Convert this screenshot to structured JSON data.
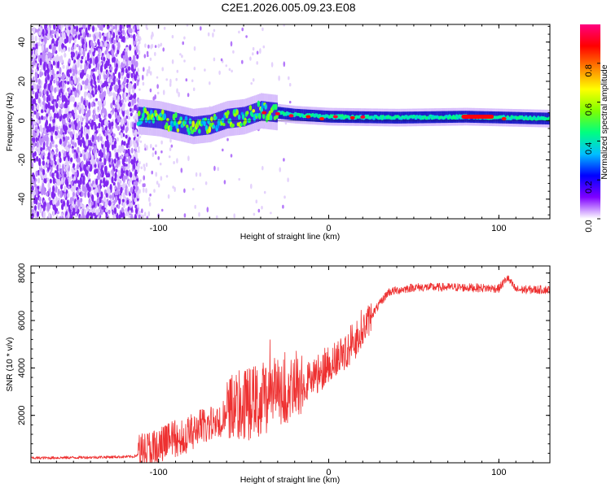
{
  "title": "C2E1.2026.005.09.23.E08",
  "chart_data": [
    {
      "type": "heatmap",
      "name": "spectrogram",
      "xlabel": "Height of straight line (km)",
      "ylabel": "Frequency (Hz)",
      "xlim": [
        -175,
        130
      ],
      "ylim": [
        -50,
        49
      ],
      "xticks": [
        -100,
        0,
        100
      ],
      "yticks": [
        -40,
        -20,
        0,
        20,
        40
      ],
      "colorbar": {
        "label": "Normalized spectral amplitude",
        "range": [
          0,
          1
        ],
        "ticks": [
          "0.0",
          "0.2",
          "0.4",
          "0.6",
          "0.8"
        ],
        "tick_values": [
          0.0,
          0.2,
          0.4,
          0.6,
          0.8
        ],
        "colors": [
          "#ffffff",
          "#7f00ff",
          "#0000ff",
          "#00c0ff",
          "#00ff80",
          "#80ff00",
          "#ffff00",
          "#ff8000",
          "#ff0000",
          "#ff0080"
        ]
      },
      "carrier_trace": [
        {
          "x": -112,
          "y": 2
        },
        {
          "x": -100,
          "y": 1
        },
        {
          "x": -90,
          "y": -1
        },
        {
          "x": -80,
          "y": -3
        },
        {
          "x": -70,
          "y": -2
        },
        {
          "x": -60,
          "y": 1
        },
        {
          "x": -50,
          "y": 2
        },
        {
          "x": -40,
          "y": 5
        },
        {
          "x": -30,
          "y": 4
        },
        {
          "x": -20,
          "y": 3
        },
        {
          "x": 0,
          "y": 2
        },
        {
          "x": 40,
          "y": 1.5
        },
        {
          "x": 80,
          "y": 2
        },
        {
          "x": 130,
          "y": 1
        }
      ]
    },
    {
      "type": "line",
      "name": "snr",
      "xlabel": "Height of straight line (km)",
      "ylabel": "SNR (10 * v/v)",
      "xlim": [
        -175,
        130
      ],
      "ylim": [
        0,
        8300
      ],
      "xticks": [
        -100,
        0,
        100
      ],
      "yticks": [
        2000,
        4000,
        6000,
        8000
      ],
      "color": "#ee3030",
      "envelope": [
        {
          "x": -175,
          "y": 200
        },
        {
          "x": -140,
          "y": 230
        },
        {
          "x": -115,
          "y": 260
        },
        {
          "x": -105,
          "y": 500
        },
        {
          "x": -95,
          "y": 800
        },
        {
          "x": -85,
          "y": 1000
        },
        {
          "x": -75,
          "y": 1400
        },
        {
          "x": -65,
          "y": 1700
        },
        {
          "x": -55,
          "y": 2000
        },
        {
          "x": -45,
          "y": 2300
        },
        {
          "x": -35,
          "y": 2600
        },
        {
          "x": -25,
          "y": 2900
        },
        {
          "x": -15,
          "y": 3200
        },
        {
          "x": -5,
          "y": 3700
        },
        {
          "x": 5,
          "y": 4300
        },
        {
          "x": 15,
          "y": 5000
        },
        {
          "x": 25,
          "y": 6200
        },
        {
          "x": 35,
          "y": 7200
        },
        {
          "x": 50,
          "y": 7400
        },
        {
          "x": 75,
          "y": 7400
        },
        {
          "x": 100,
          "y": 7350
        },
        {
          "x": 105,
          "y": 7800
        },
        {
          "x": 110,
          "y": 7300
        },
        {
          "x": 130,
          "y": 7300
        }
      ]
    }
  ]
}
